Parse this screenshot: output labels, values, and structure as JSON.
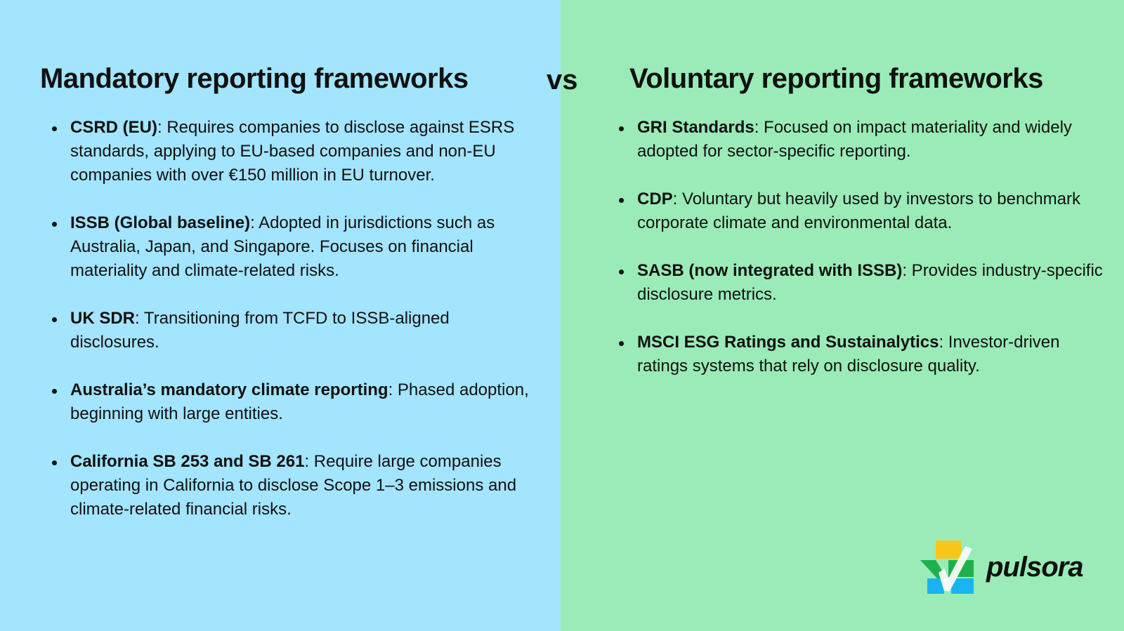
{
  "left": {
    "title": "Mandatory reporting frameworks",
    "items": [
      {
        "term": "CSRD (EU)",
        "text": ": Requires companies to disclose against ESRS standards, applying to EU-based companies and non-EU companies with over €150 million in EU turnover."
      },
      {
        "term": "ISSB (Global baseline)",
        "text": ": Adopted in jurisdictions such as Australia, Japan, and Singapore. Focuses on financial materiality and climate-related risks."
      },
      {
        "term": "UK SDR",
        "text": ": Transitioning from TCFD to ISSB-aligned disclosures."
      },
      {
        "term": "Australia’s mandatory climate reporting",
        "text": ": Phased adoption, beginning with large entities."
      },
      {
        "term": "California SB 253 and SB 261",
        "text": ": Require large companies operating in California to disclose Scope 1–3 emissions and climate-related financial risks."
      }
    ]
  },
  "vs_label": "vs",
  "right": {
    "title": "Voluntary reporting frameworks",
    "items": [
      {
        "term": "GRI Standards",
        "text": ": Focused on impact materiality and widely adopted for sector-specific reporting."
      },
      {
        "term": "CDP",
        "text": ": Voluntary but heavily used by investors to benchmark corporate climate and environmental data."
      },
      {
        "term": "SASB (now integrated with ISSB)",
        "text": ": Provides industry-specific disclosure metrics."
      },
      {
        "term": "MSCI ESG Ratings and Sustainalytics",
        "text": ": Investor-driven ratings systems that rely on disclosure quality."
      }
    ]
  },
  "logo": {
    "wordmark": "pulsora",
    "colors": {
      "yellow": "#f7c61a",
      "green": "#20b04b",
      "blue": "#19b4f0"
    }
  },
  "colors": {
    "left_bg": "#a3e4ff",
    "right_bg": "#9aebb7"
  }
}
